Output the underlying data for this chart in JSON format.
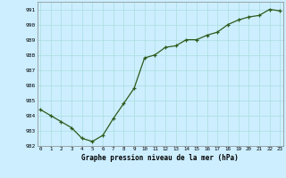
{
  "x": [
    0,
    1,
    2,
    3,
    4,
    5,
    6,
    7,
    8,
    9,
    10,
    11,
    12,
    13,
    14,
    15,
    16,
    17,
    18,
    19,
    20,
    21,
    22,
    23
  ],
  "y": [
    984.4,
    984.0,
    983.6,
    983.2,
    982.5,
    982.3,
    982.7,
    983.8,
    984.8,
    985.8,
    987.8,
    988.0,
    988.5,
    988.6,
    989.0,
    989.0,
    989.3,
    989.5,
    990.0,
    990.3,
    990.5,
    990.6,
    991.0,
    990.9
  ],
  "line_color": "#2d5a1b",
  "marker_color": "#2d5a1b",
  "bg_color": "#cceeff",
  "grid_color": "#aadddd",
  "xlabel": "Graphe pression niveau de la mer (hPa)",
  "ylim": [
    982,
    991.5
  ],
  "ytick_labels": [
    "982",
    "983",
    "984",
    "985",
    "986",
    "987",
    "988",
    "989",
    "990",
    "991"
  ],
  "ytick_vals": [
    982,
    983,
    984,
    985,
    986,
    987,
    988,
    989,
    990,
    991
  ],
  "xtick_vals": [
    0,
    1,
    2,
    3,
    4,
    5,
    6,
    7,
    8,
    9,
    10,
    11,
    12,
    13,
    14,
    15,
    16,
    17,
    18,
    19,
    20,
    21,
    22,
    23
  ],
  "xlim": [
    -0.3,
    23.3
  ]
}
